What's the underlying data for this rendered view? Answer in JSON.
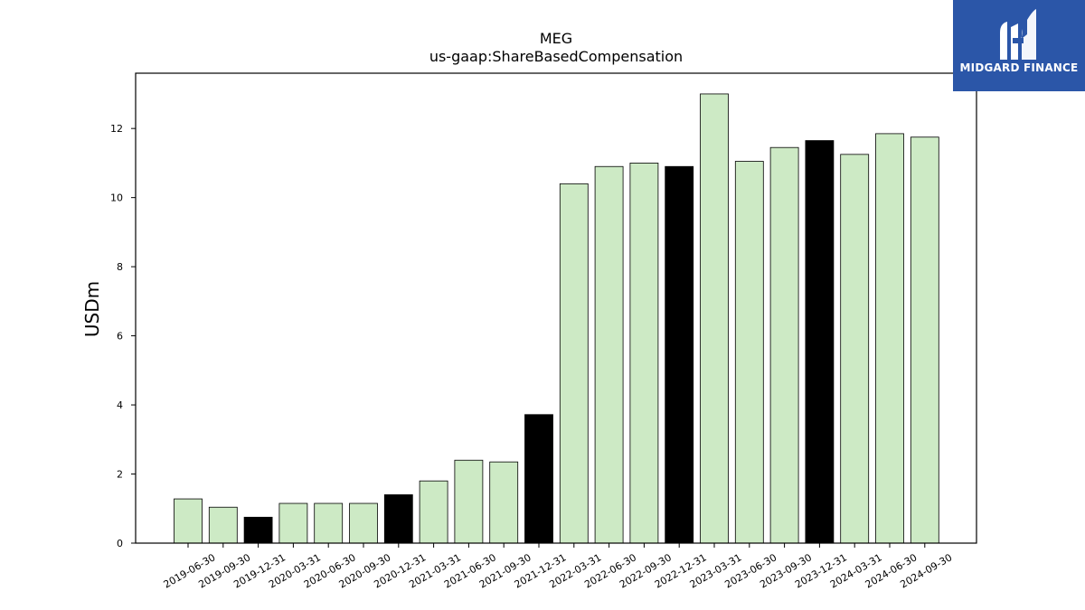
{
  "chart_data": {
    "type": "bar",
    "title": "MEG",
    "subtitle": "us-gaap:ShareBasedCompensation",
    "xlabel": "",
    "ylabel": "USDm",
    "ylim": [
      0,
      13.6
    ],
    "yticks": [
      0,
      2,
      4,
      6,
      8,
      10,
      12
    ],
    "grid": false,
    "colors": {
      "quarter": "#cdeac5",
      "year_end": "#000000",
      "edge": "#000000"
    },
    "categories": [
      "2019-06-30",
      "2019-09-30",
      "2019-12-31",
      "2020-03-31",
      "2020-06-30",
      "2020-09-30",
      "2020-12-31",
      "2021-03-31",
      "2021-06-30",
      "2021-09-30",
      "2021-12-31",
      "2022-03-31",
      "2022-06-30",
      "2022-09-30",
      "2022-12-31",
      "2023-03-31",
      "2023-06-30",
      "2023-09-30",
      "2023-12-31",
      "2024-03-31",
      "2024-06-30",
      "2024-09-30"
    ],
    "values": [
      1.28,
      1.04,
      0.75,
      1.15,
      1.15,
      1.15,
      1.4,
      1.8,
      2.4,
      2.35,
      3.72,
      10.4,
      10.9,
      11.0,
      10.9,
      13.0,
      11.05,
      11.45,
      11.65,
      11.25,
      11.85,
      11.75
    ],
    "highlight": [
      false,
      false,
      true,
      false,
      false,
      false,
      true,
      false,
      false,
      false,
      true,
      false,
      false,
      false,
      true,
      false,
      false,
      false,
      true,
      false,
      false,
      false
    ]
  },
  "logo": {
    "text": "MIDGARD FINANCE",
    "icon": "midgard-logo-icon",
    "background": "#2b56a8"
  }
}
